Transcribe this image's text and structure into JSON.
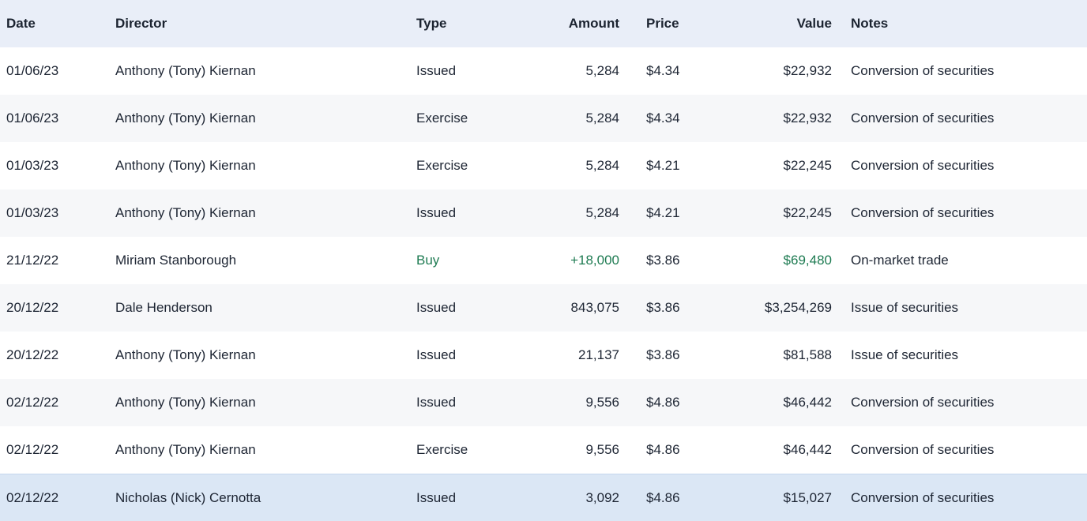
{
  "colors": {
    "header_bg": "#e9eef8",
    "positive": "#1e7b52",
    "highlight_row_bg": "#dbe7f5"
  },
  "table": {
    "columns": [
      {
        "label": "Date"
      },
      {
        "label": "Director"
      },
      {
        "label": "Type"
      },
      {
        "label": "Amount"
      },
      {
        "label": "Price"
      },
      {
        "label": "Value"
      },
      {
        "label": "Notes"
      }
    ],
    "rows": [
      {
        "date": "01/06/23",
        "director": "Anthony (Tony) Kiernan",
        "type": "Issued",
        "amount": "5,284",
        "price": "$4.34",
        "value": "$22,932",
        "notes": "Conversion of securities",
        "positive": false,
        "highlighted": false
      },
      {
        "date": "01/06/23",
        "director": "Anthony (Tony) Kiernan",
        "type": "Exercise",
        "amount": "5,284",
        "price": "$4.34",
        "value": "$22,932",
        "notes": "Conversion of securities",
        "positive": false,
        "highlighted": false
      },
      {
        "date": "01/03/23",
        "director": "Anthony (Tony) Kiernan",
        "type": "Exercise",
        "amount": "5,284",
        "price": "$4.21",
        "value": "$22,245",
        "notes": "Conversion of securities",
        "positive": false,
        "highlighted": false
      },
      {
        "date": "01/03/23",
        "director": "Anthony (Tony) Kiernan",
        "type": "Issued",
        "amount": "5,284",
        "price": "$4.21",
        "value": "$22,245",
        "notes": "Conversion of securities",
        "positive": false,
        "highlighted": false
      },
      {
        "date": "21/12/22",
        "director": "Miriam Stanborough",
        "type": "Buy",
        "amount": "+18,000",
        "price": "$3.86",
        "value": "$69,480",
        "notes": "On-market trade",
        "positive": true,
        "highlighted": false
      },
      {
        "date": "20/12/22",
        "director": "Dale Henderson",
        "type": "Issued",
        "amount": "843,075",
        "price": "$3.86",
        "value": "$3,254,269",
        "notes": "Issue of securities",
        "positive": false,
        "highlighted": false
      },
      {
        "date": "20/12/22",
        "director": "Anthony (Tony) Kiernan",
        "type": "Issued",
        "amount": "21,137",
        "price": "$3.86",
        "value": "$81,588",
        "notes": "Issue of securities",
        "positive": false,
        "highlighted": false
      },
      {
        "date": "02/12/22",
        "director": "Anthony (Tony) Kiernan",
        "type": "Issued",
        "amount": "9,556",
        "price": "$4.86",
        "value": "$46,442",
        "notes": "Conversion of securities",
        "positive": false,
        "highlighted": false
      },
      {
        "date": "02/12/22",
        "director": "Anthony (Tony) Kiernan",
        "type": "Exercise",
        "amount": "9,556",
        "price": "$4.86",
        "value": "$46,442",
        "notes": "Conversion of securities",
        "positive": false,
        "highlighted": false
      },
      {
        "date": "02/12/22",
        "director": "Nicholas (Nick) Cernotta",
        "type": "Issued",
        "amount": "3,092",
        "price": "$4.86",
        "value": "$15,027",
        "notes": "Conversion of securities",
        "positive": false,
        "highlighted": true
      }
    ]
  }
}
